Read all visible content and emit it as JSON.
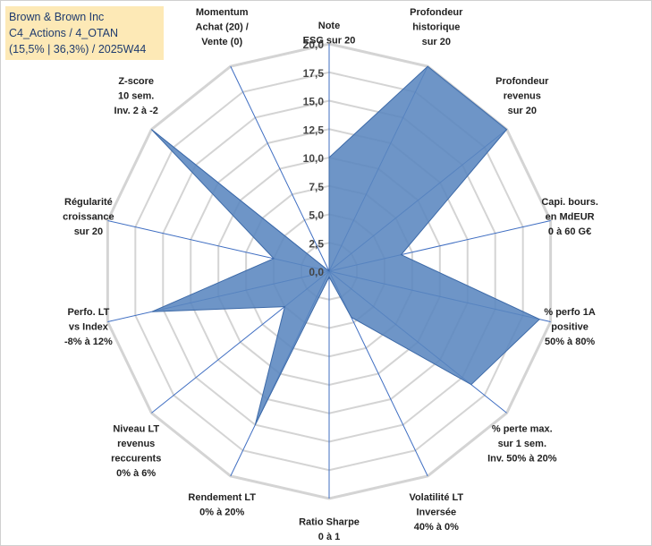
{
  "chart_data": {
    "type": "radar",
    "title_lines": [
      "Brown & Brown Inc",
      "C4_Actions / 4_OTAN",
      "(15,5% | 36,3%) / 2025W44"
    ],
    "rmin": 0,
    "rmax": 20,
    "ticks": [
      "0,0",
      "2,5",
      "5,0",
      "7,5",
      "10,0",
      "12,5",
      "15,0",
      "17,5",
      "20,0"
    ],
    "tick_values": [
      0,
      2.5,
      5,
      7.5,
      10,
      12.5,
      15,
      17.5,
      20
    ],
    "axes": [
      {
        "label": [
          "Note",
          "ESG sur 20"
        ],
        "value": 10
      },
      {
        "label": [
          "Profondeur",
          "historique",
          "sur 20"
        ],
        "value": 20
      },
      {
        "label": [
          "Profondeur",
          "revenus",
          "sur 20"
        ],
        "value": 20
      },
      {
        "label": [
          "Capi. bours.",
          "en MdEUR",
          "0 à 60 G€"
        ],
        "value": 6.5
      },
      {
        "label": [
          "% perfo 1A",
          "positive",
          "50% à 80%"
        ],
        "value": 19
      },
      {
        "label": [
          "% perte max.",
          "sur 1 sem.",
          "Inv. 50% à 20%"
        ],
        "value": 16
      },
      {
        "label": [
          "Volatilité LT",
          "Inversée",
          "40% à 0%"
        ],
        "value": 4.5
      },
      {
        "label": [
          "Ratio Sharpe",
          "0 à 1"
        ],
        "value": 0.5
      },
      {
        "label": [
          "Rendement LT",
          "0% à 20%"
        ],
        "value": 15
      },
      {
        "label": [
          "Niveau LT",
          "revenus",
          "reccurents",
          "0% à 6%"
        ],
        "value": 5
      },
      {
        "label": [
          "Perfo. LT",
          "vs Index",
          "-8% à 12%"
        ],
        "value": 16
      },
      {
        "label": [
          "Régularité",
          "croissance",
          "sur 20"
        ],
        "value": 5
      },
      {
        "label": [
          "Z-score",
          "10 sem.",
          "Inv. 2 à -2"
        ],
        "value": 20
      },
      {
        "label": [
          "Momentum",
          "Achat (20) /",
          "Vente (0)"
        ],
        "value": 0
      }
    ],
    "colors": {
      "fill": "#5a86bf",
      "stroke": "#3d6aa8",
      "grid": "#d4d4d4",
      "spoke": "#3f6ec2"
    }
  }
}
